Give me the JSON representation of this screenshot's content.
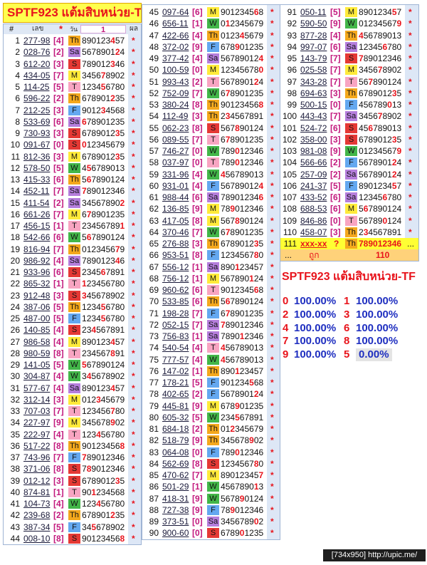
{
  "title": "SPTF923 แต้มสิบหน่วย-TF",
  "header": {
    "num": "#",
    "code": "เลข",
    "star": "*",
    "day": "วัน",
    "filter": "1",
    "result": "ผล"
  },
  "colors": {
    "accent": "#e8141c",
    "bracket": "#c2187d",
    "percent": "#1f2fc0",
    "strip": "#dde7f6",
    "title_bg": "#ffff4d"
  },
  "day_colors": {
    "Th": "#f4a81d",
    "Sa": "#b57edc",
    "S": "#e53935",
    "M": "#ffeb3b",
    "T": "#f8a5c2",
    "W": "#43b649",
    "F": "#64a8f0"
  },
  "columns": [
    {
      "rows": [
        [
          "1",
          "277-98",
          "[4]",
          "Th",
          "890123457",
          "*"
        ],
        [
          "2",
          "028-76",
          "[2]",
          "Sa",
          "567890124",
          "*"
        ],
        [
          "3",
          "612-20",
          "[3]",
          "S",
          "789012346",
          "*"
        ],
        [
          "4",
          "434-05",
          "[7]",
          "M",
          "345678902",
          "*"
        ],
        [
          "5",
          "114-25",
          "[5]",
          "T",
          "123456780",
          "*"
        ],
        [
          "6",
          "596-22",
          "[2]",
          "Th",
          "678901235",
          "*"
        ],
        [
          "7",
          "212-25",
          "[3]",
          "F",
          "901234568",
          "*"
        ],
        [
          "8",
          "533-69",
          "[6]",
          "Sa",
          "678901235",
          "*"
        ],
        [
          "9",
          "730-93",
          "[3]",
          "S",
          "678901235",
          "*"
        ],
        [
          "10",
          "091-67",
          "[0]",
          "S",
          "012345679",
          "*"
        ],
        [
          "11",
          "812-36",
          "[3]",
          "M",
          "678901235",
          "*"
        ],
        [
          "12",
          "578-50",
          "[5]",
          "W",
          "456789013",
          "*"
        ],
        [
          "13",
          "415-33",
          "[6]",
          "Th",
          "567890124",
          "*"
        ],
        [
          "14",
          "452-11",
          "[7]",
          "Sa",
          "789012346",
          "*"
        ],
        [
          "15",
          "411-54",
          "[2]",
          "Sa",
          "345678902",
          "*"
        ],
        [
          "16",
          "661-26",
          "[7]",
          "M",
          "678901235",
          "*"
        ],
        [
          "17",
          "456-15",
          "[1]",
          "T",
          "234567891",
          "*"
        ],
        [
          "18",
          "542-66",
          "[6]",
          "W",
          "567890124",
          "*"
        ],
        [
          "19",
          "816-94",
          "[7]",
          "Th",
          "012345679",
          "*"
        ],
        [
          "20",
          "986-92",
          "[4]",
          "Sa",
          "789012346",
          "*"
        ],
        [
          "21",
          "933-96",
          "[6]",
          "S",
          "234567891",
          "*"
        ],
        [
          "22",
          "865-32",
          "[1]",
          "T",
          "123456780",
          "*"
        ],
        [
          "23",
          "912-48",
          "[3]",
          "S",
          "345678902",
          "*"
        ],
        [
          "24",
          "387-06",
          "[5]",
          "Th",
          "123456780",
          "*"
        ],
        [
          "25",
          "487-00",
          "[5]",
          "F",
          "123456780",
          "*"
        ],
        [
          "26",
          "140-85",
          "[4]",
          "S",
          "234567891",
          "*"
        ],
        [
          "27",
          "986-58",
          "[4]",
          "M",
          "890123457",
          "*"
        ],
        [
          "28",
          "980-59",
          "[8]",
          "T",
          "234567891",
          "*"
        ],
        [
          "29",
          "141-05",
          "[5]",
          "W",
          "567890124",
          "*"
        ],
        [
          "30",
          "304-87",
          "[4]",
          "W",
          "345678902",
          "*"
        ],
        [
          "31",
          "577-67",
          "[4]",
          "Sa",
          "890123457",
          "*"
        ],
        [
          "32",
          "312-14",
          "[3]",
          "M",
          "012345679",
          "*"
        ],
        [
          "33",
          "707-03",
          "[7]",
          "T",
          "123456780",
          "*"
        ],
        [
          "34",
          "227-97",
          "[9]",
          "M",
          "345678902",
          "*"
        ],
        [
          "35",
          "222-97",
          "[4]",
          "T",
          "123456780",
          "*"
        ],
        [
          "36",
          "517-22",
          "[8]",
          "Th",
          "901234568",
          "*"
        ],
        [
          "37",
          "743-96",
          "[7]",
          "F",
          "789012346",
          "*"
        ],
        [
          "38",
          "371-06",
          "[8]",
          "S",
          "789012346",
          "*"
        ],
        [
          "39",
          "012-12",
          "[3]",
          "S",
          "678901235",
          "*"
        ],
        [
          "40",
          "874-81",
          "[1]",
          "T",
          "901234568",
          "*"
        ],
        [
          "41",
          "104-73",
          "[4]",
          "W",
          "123456780",
          "*"
        ],
        [
          "42",
          "239-68",
          "[2]",
          "Th",
          "678901235",
          "*"
        ],
        [
          "43",
          "387-34",
          "[5]",
          "F",
          "345678902",
          "*"
        ],
        [
          "44",
          "008-10",
          "[8]",
          "S",
          "901234568",
          "*"
        ]
      ]
    },
    {
      "rows": [
        [
          "45",
          "097-64",
          "[6]",
          "M",
          "901234568",
          "*"
        ],
        [
          "46",
          "656-11",
          "[1]",
          "W",
          "012345679",
          "*"
        ],
        [
          "47",
          "422-66",
          "[4]",
          "Th",
          "012345679",
          "*"
        ],
        [
          "48",
          "372-02",
          "[9]",
          "F",
          "678901235",
          "*"
        ],
        [
          "49",
          "377-42",
          "[4]",
          "Sa",
          "567890124",
          "*"
        ],
        [
          "50",
          "100-59",
          "[0]",
          "M",
          "123456780",
          "*"
        ],
        [
          "51",
          "993-43",
          "[2]",
          "T",
          "567890124",
          "*"
        ],
        [
          "52",
          "752-09",
          "[7]",
          "W",
          "678901235",
          "*"
        ],
        [
          "53",
          "380-24",
          "[8]",
          "Th",
          "901234568",
          "*"
        ],
        [
          "54",
          "112-49",
          "[3]",
          "Th",
          "234567891",
          "*"
        ],
        [
          "55",
          "062-23",
          "[8]",
          "S",
          "567890124",
          "*"
        ],
        [
          "56",
          "089-55",
          "[7]",
          "T",
          "678901235",
          "*"
        ],
        [
          "57",
          "746-27",
          "[0]",
          "W",
          "789012346",
          "*"
        ],
        [
          "58",
          "037-97",
          "[0]",
          "T",
          "789012346",
          "*"
        ],
        [
          "59",
          "331-96",
          "[4]",
          "W",
          "456789013",
          "*"
        ],
        [
          "60",
          "931-01",
          "[4]",
          "F",
          "567890124",
          "*"
        ],
        [
          "61",
          "988-44",
          "[6]",
          "Sa",
          "789012346",
          "*"
        ],
        [
          "62",
          "136-85",
          "[9]",
          "M",
          "789012346",
          "*"
        ],
        [
          "63",
          "417-05",
          "[8]",
          "M",
          "567890124",
          "*"
        ],
        [
          "64",
          "370-46",
          "[7]",
          "W",
          "678901235",
          "*"
        ],
        [
          "65",
          "276-88",
          "[3]",
          "Th",
          "678901235",
          "*"
        ],
        [
          "66",
          "953-51",
          "[8]",
          "F",
          "123456780",
          "*"
        ],
        [
          "67",
          "556-12",
          "[1]",
          "Sa",
          "890123457",
          "*"
        ],
        [
          "68",
          "756-12",
          "[1]",
          "M",
          "567890124",
          "*"
        ],
        [
          "69",
          "960-62",
          "[6]",
          "T",
          "901234568",
          "*"
        ],
        [
          "70",
          "533-85",
          "[6]",
          "Th",
          "567890124",
          "*"
        ],
        [
          "71",
          "198-28",
          "[7]",
          "F",
          "678901235",
          "*"
        ],
        [
          "72",
          "052-15",
          "[7]",
          "Sa",
          "789012346",
          "*"
        ],
        [
          "73",
          "756-83",
          "[1]",
          "Sa",
          "789012346",
          "*"
        ],
        [
          "74",
          "540-54",
          "[4]",
          "T",
          "456789013",
          "*"
        ],
        [
          "75",
          "777-57",
          "[4]",
          "W",
          "456789013",
          "*"
        ],
        [
          "76",
          "147-02",
          "[1]",
          "Th",
          "890123457",
          "*"
        ],
        [
          "77",
          "178-21",
          "[5]",
          "F",
          "901234568",
          "*"
        ],
        [
          "78",
          "402-65",
          "[2]",
          "F",
          "567890124",
          "*"
        ],
        [
          "79",
          "445-81",
          "[9]",
          "M",
          "678901235",
          "*"
        ],
        [
          "80",
          "605-32",
          "[5]",
          "W",
          "234567891",
          "*"
        ],
        [
          "81",
          "684-18",
          "[2]",
          "Th",
          "012345679",
          "*"
        ],
        [
          "82",
          "518-79",
          "[9]",
          "Th",
          "345678902",
          "*"
        ],
        [
          "83",
          "064-08",
          "[0]",
          "F",
          "789012346",
          "*"
        ],
        [
          "84",
          "562-69",
          "[8]",
          "S",
          "123456780",
          "*"
        ],
        [
          "85",
          "470-62",
          "[7]",
          "M",
          "890123457",
          "*"
        ],
        [
          "86",
          "501-29",
          "[1]",
          "W",
          "456789013",
          "*"
        ],
        [
          "87",
          "418-31",
          "[9]",
          "W",
          "567890124",
          "*"
        ],
        [
          "88",
          "727-38",
          "[9]",
          "F",
          "789012346",
          "*"
        ],
        [
          "89",
          "373-51",
          "[0]",
          "Sa",
          "345678902",
          "*"
        ],
        [
          "90",
          "900-60",
          "[0]",
          "S",
          "678901235",
          "*"
        ]
      ]
    },
    {
      "rows": [
        [
          "91",
          "050-11",
          "[5]",
          "M",
          "890123457",
          "*"
        ],
        [
          "92",
          "590-50",
          "[9]",
          "W",
          "012345679",
          "*"
        ],
        [
          "93",
          "877-28",
          "[4]",
          "Th",
          "456789013",
          "*"
        ],
        [
          "94",
          "997-07",
          "[6]",
          "Sa",
          "123456780",
          "*"
        ],
        [
          "95",
          "143-79",
          "[7]",
          "S",
          "789012346",
          "*"
        ],
        [
          "96",
          "025-58",
          "[7]",
          "M",
          "345678902",
          "*"
        ],
        [
          "97",
          "343-28",
          "[7]",
          "T",
          "567890124",
          "*"
        ],
        [
          "98",
          "694-63",
          "[3]",
          "Th",
          "678901235",
          "*"
        ],
        [
          "99",
          "500-15",
          "[0]",
          "F",
          "456789013",
          "*"
        ],
        [
          "100",
          "443-43",
          "[7]",
          "Sa",
          "345678902",
          "*"
        ],
        [
          "101",
          "524-72",
          "[6]",
          "S",
          "456789013",
          "*"
        ],
        [
          "102",
          "358-00",
          "[3]",
          "S",
          "678901235",
          "*"
        ],
        [
          "103",
          "981-08",
          "[9]",
          "W",
          "012345679",
          "*"
        ],
        [
          "104",
          "566-66",
          "[2]",
          "F",
          "567890124",
          "*"
        ],
        [
          "105",
          "257-09",
          "[2]",
          "Sa",
          "567890124",
          "*"
        ],
        [
          "106",
          "241-37",
          "[5]",
          "F",
          "890123457",
          "*"
        ],
        [
          "107",
          "433-52",
          "[6]",
          "Sa",
          "123456780",
          "*"
        ],
        [
          "108",
          "688-53",
          "[6]",
          "M",
          "567890124",
          "*"
        ],
        [
          "109",
          "846-86",
          "[0]",
          "T",
          "567890124",
          "*"
        ],
        [
          "110",
          "458-07",
          "[3]",
          "Th",
          "234567891",
          "*"
        ]
      ]
    }
  ],
  "pending_row": {
    "num": "111",
    "code": "xxx-xx",
    "bracket": "?",
    "day": "Th",
    "digits": "789012346",
    "mark": "..."
  },
  "summary_row": {
    "lead": "...",
    "label": "ถูก",
    "count": "110"
  },
  "stats": {
    "title": "SPTF923 แต้มสิบหน่วย-TF",
    "items": [
      {
        "digit": "0",
        "pct": "100.00%"
      },
      {
        "digit": "1",
        "pct": "100.00%"
      },
      {
        "digit": "2",
        "pct": "100.00%"
      },
      {
        "digit": "3",
        "pct": "100.00%"
      },
      {
        "digit": "4",
        "pct": "100.00%"
      },
      {
        "digit": "6",
        "pct": "100.00%"
      },
      {
        "digit": "7",
        "pct": "100.00%"
      },
      {
        "digit": "8",
        "pct": "100.00%"
      },
      {
        "digit": "9",
        "pct": "100.00%"
      },
      {
        "digit": "5",
        "pct": "0.00%"
      }
    ]
  },
  "watermark": "[734x950] http://upic.me/"
}
